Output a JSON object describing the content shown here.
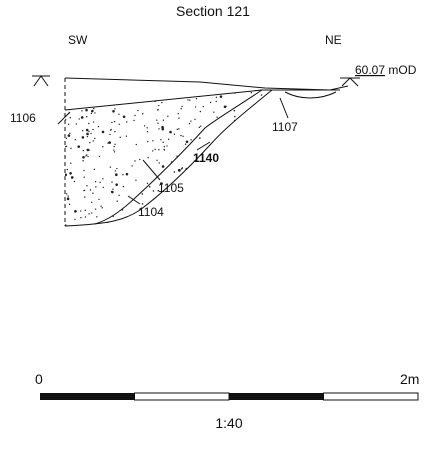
{
  "title": "Section 121",
  "orientation": {
    "left": "SW",
    "right": "NE"
  },
  "datum": {
    "value": "60.07",
    "unit": "mOD"
  },
  "contexts": {
    "1106": "1106",
    "1107": "1107",
    "1140": "1140",
    "1105": "1105",
    "1104": "1104"
  },
  "scale_bar": {
    "start": "0",
    "end": "2m",
    "ratio": "1:40"
  }
}
